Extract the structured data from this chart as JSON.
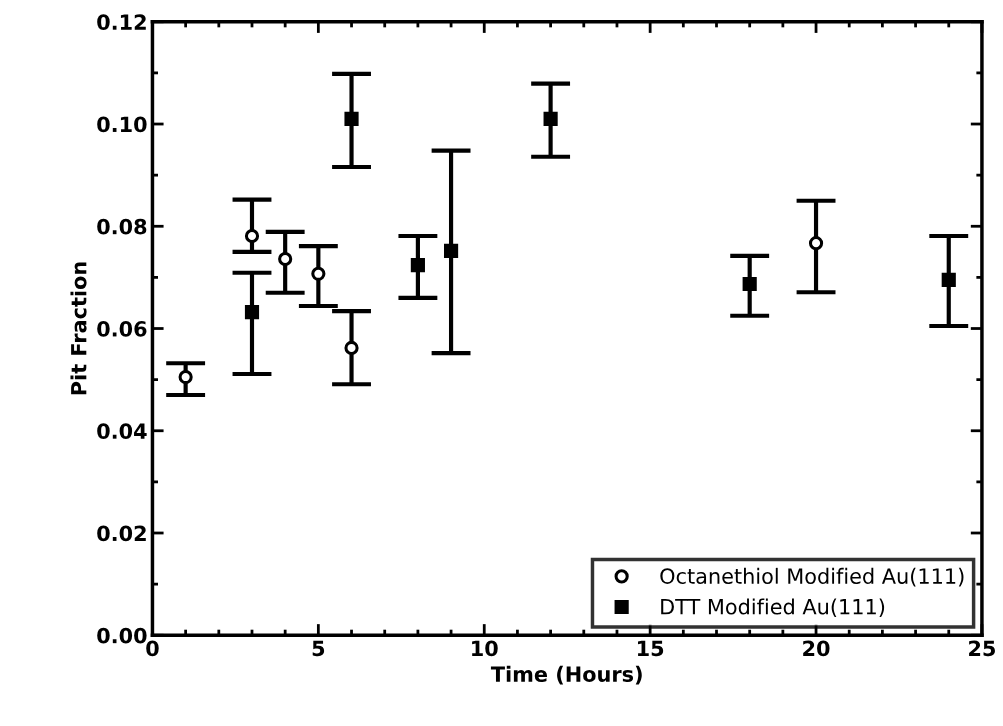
{
  "chart_data": {
    "type": "scatter",
    "xlabel": "Time (Hours)",
    "ylabel": "Pit Fraction",
    "xlim": [
      0,
      25
    ],
    "xticks": [
      0,
      5,
      10,
      15,
      20,
      25
    ],
    "ylim": [
      0,
      0.12
    ],
    "yticks": [
      {
        "value": 0,
        "label": "0.00"
      },
      {
        "value": 0.02,
        "label": "0.02"
      },
      {
        "value": 0.04,
        "label": "0.04"
      },
      {
        "value": 0.06,
        "label": "0.06"
      },
      {
        "value": 0.08,
        "label": "0.08"
      },
      {
        "value": 0.1,
        "label": "0.10"
      },
      {
        "value": 0.12,
        "label": "0.12"
      }
    ],
    "grid": false,
    "legend": "bottom right",
    "series": [
      {
        "name": "Octanethiol Modified Au(111)",
        "color": "#000000",
        "marker": "circle",
        "x": [
          1,
          3,
          4,
          5,
          6,
          20
        ],
        "values": [
          0.0505,
          0.0781,
          0.0736,
          0.0707,
          0.0562,
          0.0767
        ],
        "errors": [
          [
            0.047,
            0.0532
          ],
          [
            0.075,
            0.0852
          ],
          [
            0.067,
            0.0789
          ],
          [
            0.0644,
            0.0761
          ],
          [
            0.0491,
            0.0634
          ],
          [
            0.0671,
            0.085
          ]
        ]
      },
      {
        "name": "DTT Modified Au(111)",
        "color": "#000000",
        "marker": "square",
        "x": [
          3,
          6,
          8,
          9,
          12,
          18,
          24
        ],
        "values": [
          0.0632,
          0.101,
          0.0724,
          0.0752,
          0.101,
          0.0687,
          0.0695
        ],
        "errors": [
          [
            0.0511,
            0.0709
          ],
          [
            0.0916,
            0.1098
          ],
          [
            0.066,
            0.0781
          ],
          [
            0.0552,
            0.0948
          ],
          [
            0.0936,
            0.1079
          ],
          [
            0.0625,
            0.0742
          ],
          [
            0.0605,
            0.0781
          ]
        ]
      }
    ]
  }
}
